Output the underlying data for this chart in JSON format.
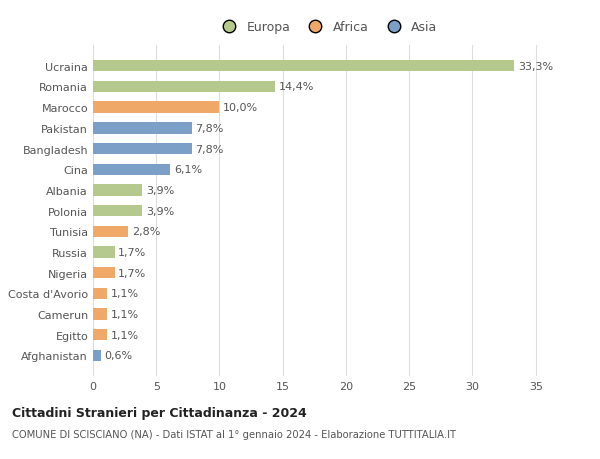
{
  "countries": [
    "Ucraina",
    "Romania",
    "Marocco",
    "Pakistan",
    "Bangladesh",
    "Cina",
    "Albania",
    "Polonia",
    "Tunisia",
    "Russia",
    "Nigeria",
    "Costa d'Avorio",
    "Camerun",
    "Egitto",
    "Afghanistan"
  ],
  "values": [
    33.3,
    14.4,
    10.0,
    7.8,
    7.8,
    6.1,
    3.9,
    3.9,
    2.8,
    1.7,
    1.7,
    1.1,
    1.1,
    1.1,
    0.6
  ],
  "labels": [
    "33,3%",
    "14,4%",
    "10,0%",
    "7,8%",
    "7,8%",
    "6,1%",
    "3,9%",
    "3,9%",
    "2,8%",
    "1,7%",
    "1,7%",
    "1,1%",
    "1,1%",
    "1,1%",
    "0,6%"
  ],
  "colors": [
    "#b5c98e",
    "#b5c98e",
    "#f0a868",
    "#7b9fc7",
    "#7b9fc7",
    "#7b9fc7",
    "#b5c98e",
    "#b5c98e",
    "#f0a868",
    "#b5c98e",
    "#f0a868",
    "#f0a868",
    "#f0a868",
    "#f0a868",
    "#7b9fc7"
  ],
  "legend_labels": [
    "Europa",
    "Africa",
    "Asia"
  ],
  "legend_colors": [
    "#b5c98e",
    "#f0a868",
    "#7b9fc7"
  ],
  "title1": "Cittadini Stranieri per Cittadinanza - 2024",
  "title2": "COMUNE DI SCISCIANO (NA) - Dati ISTAT al 1° gennaio 2024 - Elaborazione TUTTITALIA.IT",
  "xlim": [
    0,
    37
  ],
  "xticks": [
    0,
    5,
    10,
    15,
    20,
    25,
    30,
    35
  ],
  "background_color": "#ffffff",
  "grid_color": "#dddddd",
  "bar_height": 0.55,
  "label_fontsize": 8,
  "tick_fontsize": 8
}
